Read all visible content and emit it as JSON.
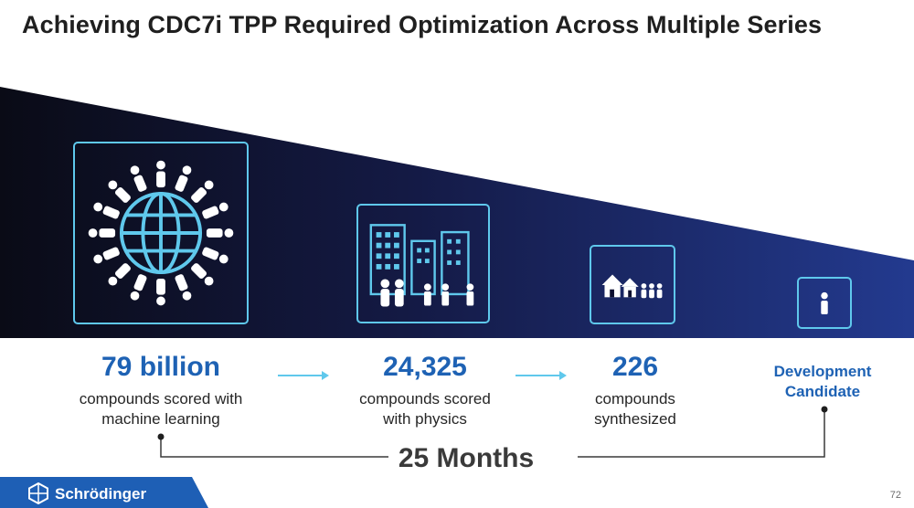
{
  "title": "Achieving CDC7i TPP Required Optimization Across Multiple Series",
  "stages": [
    {
      "value": "79 billion",
      "desc_line1": "compounds scored with",
      "desc_line2": "machine learning",
      "icon": "globe-crowd-icon"
    },
    {
      "value": "24,325",
      "desc_line1": "compounds scored",
      "desc_line2": "with physics",
      "icon": "city-icon"
    },
    {
      "value": "226",
      "desc_line1": "compounds",
      "desc_line2": "synthesized",
      "icon": "village-icon"
    },
    {
      "value_line1": "Development",
      "value_line2": "Candidate",
      "icon": "person-icon"
    }
  ],
  "timeline": "25 Months",
  "brand": "Schrödinger",
  "page_number": "72",
  "colors": {
    "accent": "#1e62b4",
    "tile_border": "#5fc8ec",
    "banner_dark": "#0b0e22",
    "banner_blue": "#1d2f7a"
  }
}
